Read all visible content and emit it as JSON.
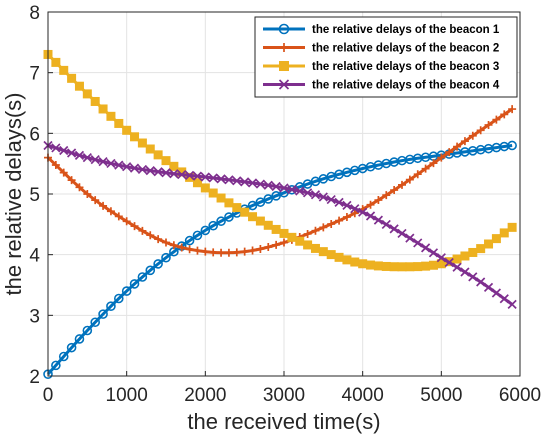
{
  "chart_data": {
    "type": "line",
    "xlabel": "the received time(s)",
    "ylabel": "the relative delays(s)",
    "xlim": [
      0,
      6000
    ],
    "ylim": [
      2,
      8
    ],
    "xticks": [
      0,
      1000,
      2000,
      3000,
      4000,
      5000,
      6000
    ],
    "yticks": [
      2,
      3,
      4,
      5,
      6,
      7,
      8
    ],
    "grid": true,
    "legend_position": "top-right",
    "series": [
      {
        "name": "the relative delays of the beacon 1",
        "color": "#0072BD",
        "marker": "circle",
        "x": [
          0,
          500,
          1000,
          1500,
          2000,
          2500,
          3000,
          3500,
          4000,
          4500,
          5000,
          5500,
          5900
        ],
        "y": [
          2.03,
          2.75,
          3.4,
          3.95,
          4.4,
          4.75,
          5.02,
          5.25,
          5.42,
          5.55,
          5.64,
          5.73,
          5.8
        ]
      },
      {
        "name": "the relative delays of the beacon 2",
        "color": "#D95319",
        "marker": "plus",
        "x": [
          0,
          500,
          1000,
          1500,
          2000,
          2500,
          3000,
          3500,
          4000,
          4500,
          5000,
          5500,
          5900
        ],
        "y": [
          5.6,
          5.0,
          4.55,
          4.2,
          4.05,
          4.05,
          4.2,
          4.45,
          4.75,
          5.15,
          5.6,
          6.05,
          6.4
        ]
      },
      {
        "name": "the relative delays of the beacon 3",
        "color": "#EDB120",
        "marker": "square",
        "x": [
          0,
          500,
          1000,
          1500,
          2000,
          2500,
          3000,
          3500,
          4000,
          4500,
          5000,
          5500,
          5900
        ],
        "y": [
          7.3,
          6.65,
          6.05,
          5.55,
          5.1,
          4.7,
          4.35,
          4.05,
          3.85,
          3.8,
          3.85,
          4.1,
          4.45
        ]
      },
      {
        "name": "the relative delays of the beacon 4",
        "color": "#7E2F8E",
        "marker": "x",
        "x": [
          0,
          500,
          1000,
          1500,
          2000,
          2500,
          3000,
          3500,
          4000,
          4500,
          5000,
          5500,
          5900
        ],
        "y": [
          5.8,
          5.6,
          5.45,
          5.35,
          5.28,
          5.2,
          5.1,
          4.95,
          4.7,
          4.35,
          3.95,
          3.55,
          3.18
        ]
      }
    ]
  }
}
